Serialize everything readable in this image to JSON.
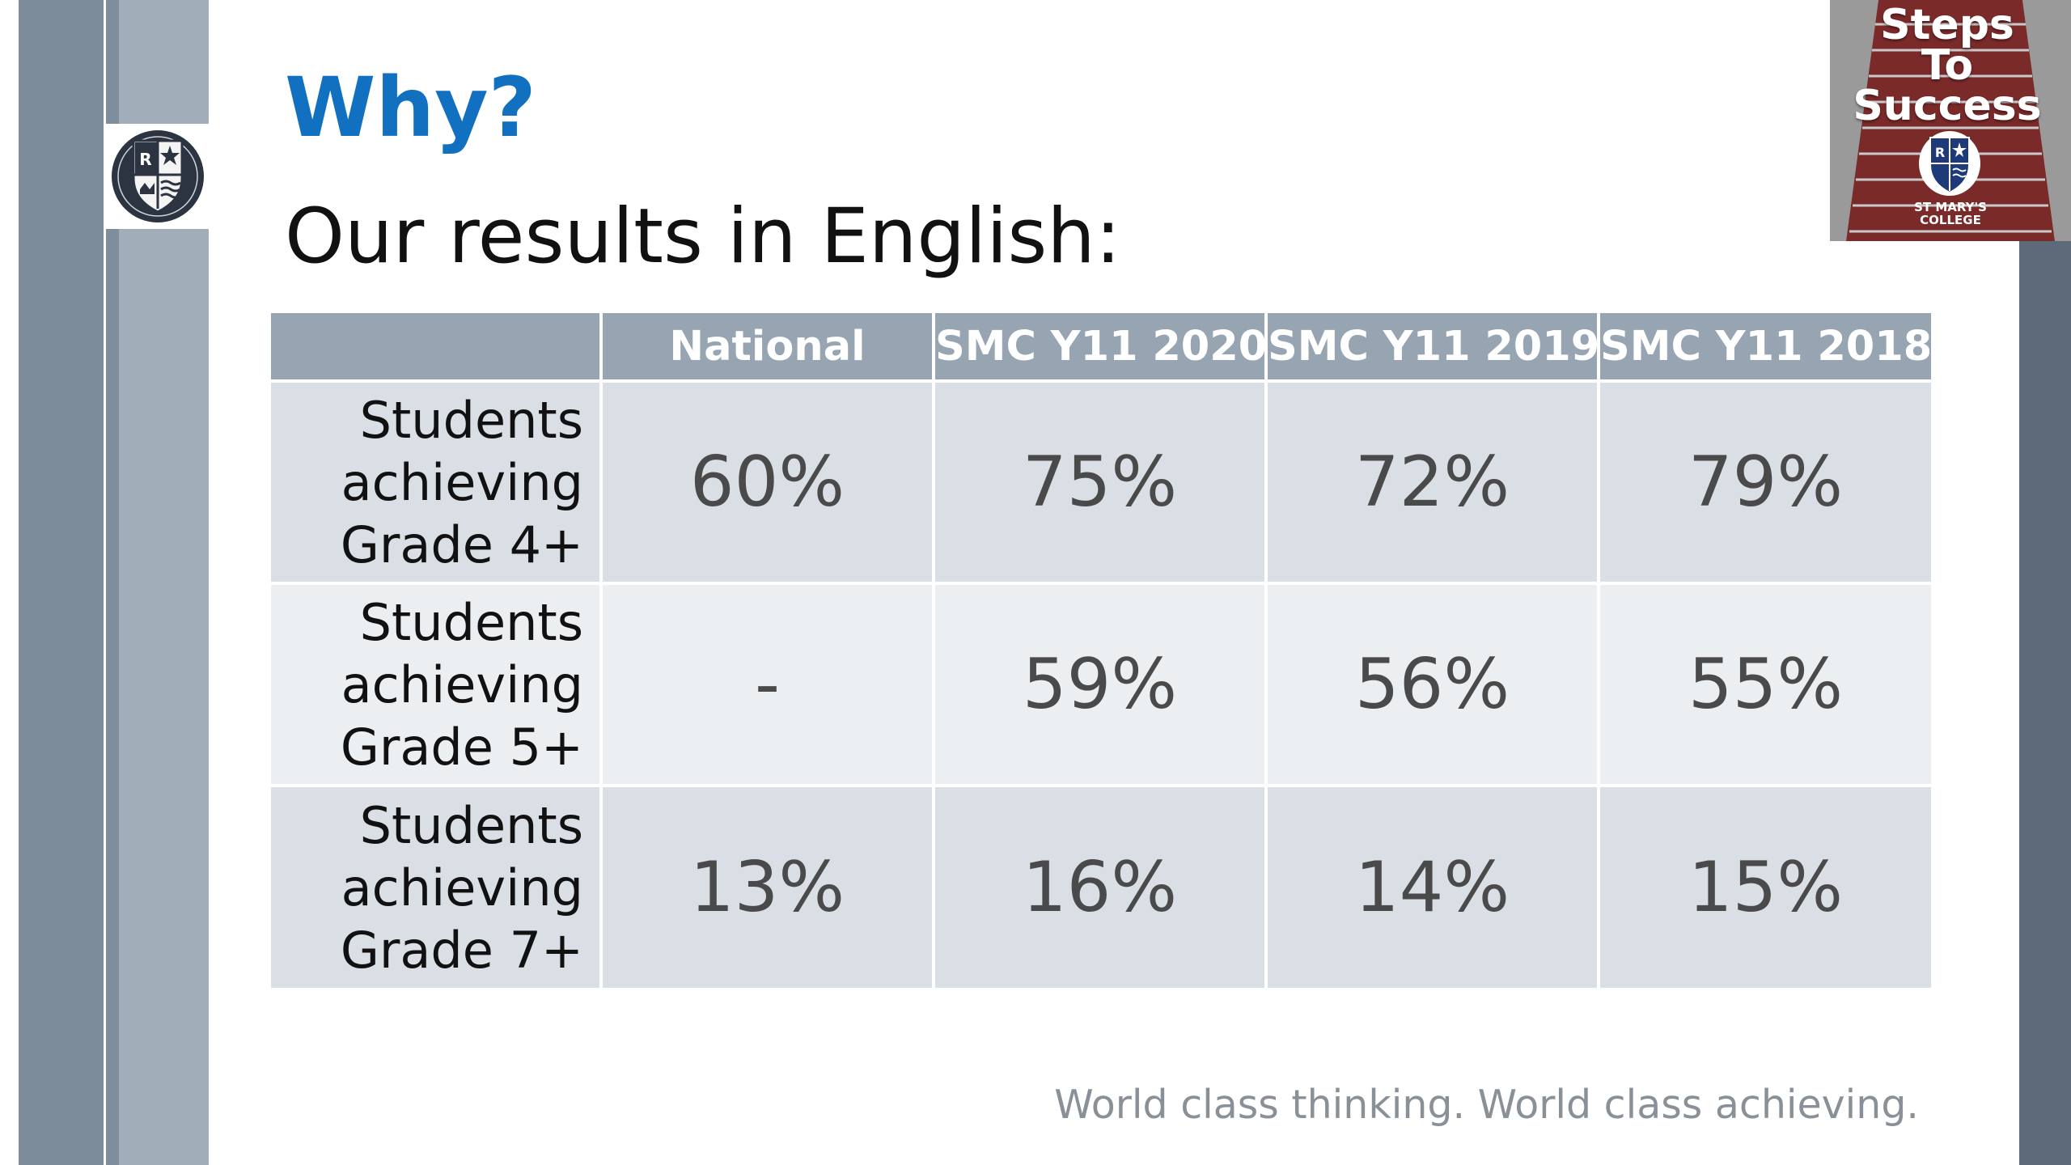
{
  "slide": {
    "heading": "Why?",
    "subheading": "Our results in English:",
    "tagline": "World class thinking. World class achieving."
  },
  "corner_badge": {
    "title_lines": [
      "Steps",
      "To",
      "Success"
    ],
    "college_name": "ST MARY'S\nCOLLEGE"
  },
  "results_table": {
    "columns": [
      "",
      "National",
      "SMC Y11 2020",
      "SMC Y11 2019",
      "SMC Y11 2018"
    ],
    "rows": [
      {
        "label_lines": [
          "Students",
          "achieving",
          "Grade 4+"
        ],
        "values": [
          "60%",
          "75%",
          "72%",
          "79%"
        ]
      },
      {
        "label_lines": [
          "Students",
          "achieving",
          "Grade 5+"
        ],
        "values": [
          "-",
          "59%",
          "56%",
          "55%"
        ]
      },
      {
        "label_lines": [
          "Students",
          "achieving",
          "Grade 7+"
        ],
        "values": [
          "13%",
          "16%",
          "14%",
          "15%"
        ]
      }
    ]
  },
  "colors": {
    "heading": "#1170c0",
    "table_header": "#97a4b2",
    "row_band_a": "#dadfe5",
    "row_band_b": "#eceff2",
    "sidebar_dark": "#7c8c9b",
    "sidebar_light": "#a1aeba",
    "right_bar": "#5c6a79"
  },
  "icons": {
    "sidebar_crest": "school-crest-icon",
    "badge_crest": "school-crest-icon"
  }
}
